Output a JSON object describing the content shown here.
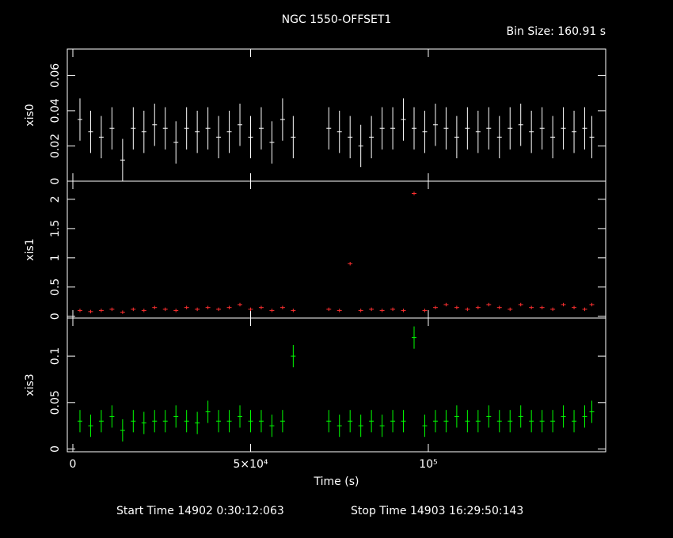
{
  "title": "NGC 1550-OFFSET1",
  "bin_size": "Bin Size: 160.91 s",
  "start_time": "Start Time 14902  0:30:12:063",
  "stop_time": "Stop Time 14903 16:29:50:143",
  "chart_data": [
    {
      "type": "errorbar",
      "ylabel": "xis0",
      "color": "#ffffff",
      "xlim": [
        -1560,
        149900
      ],
      "ylim": [
        0,
        0.075
      ],
      "yticks": [
        0,
        0.02,
        0.04,
        0.06
      ],
      "error": 0.012,
      "x": [
        2000,
        5000,
        8000,
        11000,
        14000,
        17000,
        20000,
        23000,
        26000,
        29000,
        32000,
        35000,
        38000,
        41000,
        44000,
        47000,
        50000,
        53000,
        56000,
        59000,
        62000,
        72000,
        75000,
        78000,
        81000,
        84000,
        87000,
        90000,
        93000,
        96000,
        99000,
        102000,
        105000,
        108000,
        111000,
        114000,
        117000,
        120000,
        123000,
        126000,
        129000,
        132000,
        135000,
        138000,
        141000,
        144000,
        146000
      ],
      "values": [
        0.035,
        0.028,
        0.025,
        0.03,
        0.012,
        0.03,
        0.028,
        0.032,
        0.03,
        0.022,
        0.03,
        0.028,
        0.03,
        0.025,
        0.028,
        0.032,
        0.025,
        0.03,
        0.022,
        0.035,
        0.025,
        0.03,
        0.028,
        0.025,
        0.02,
        0.025,
        0.03,
        0.03,
        0.035,
        0.03,
        0.028,
        0.032,
        0.03,
        0.025,
        0.03,
        0.028,
        0.03,
        0.025,
        0.03,
        0.032,
        0.028,
        0.03,
        0.025,
        0.03,
        0.028,
        0.03,
        0.025
      ]
    },
    {
      "type": "errorbar",
      "ylabel": "xis1",
      "color": "#ff3030",
      "xlim": [
        -1560,
        149900
      ],
      "ylim": [
        -0.03,
        2.31
      ],
      "yticks": [
        0,
        0.5,
        1,
        1.5,
        2
      ],
      "error": 0.03,
      "x": [
        2000,
        5000,
        8000,
        11000,
        14000,
        17000,
        20000,
        23000,
        26000,
        29000,
        32000,
        35000,
        38000,
        41000,
        44000,
        47000,
        50000,
        53000,
        56000,
        59000,
        62000,
        72000,
        75000,
        78000,
        81000,
        84000,
        87000,
        90000,
        93000,
        96000,
        99000,
        102000,
        105000,
        108000,
        111000,
        114000,
        117000,
        120000,
        123000,
        126000,
        129000,
        132000,
        135000,
        138000,
        141000,
        144000,
        146000
      ],
      "values": [
        0.1,
        0.08,
        0.1,
        0.12,
        0.07,
        0.12,
        0.1,
        0.15,
        0.12,
        0.1,
        0.15,
        0.12,
        0.15,
        0.12,
        0.15,
        0.2,
        0.12,
        0.15,
        0.1,
        0.15,
        0.1,
        0.12,
        0.1,
        0.9,
        0.1,
        0.12,
        0.1,
        0.12,
        0.1,
        2.1,
        0.1,
        0.15,
        0.2,
        0.15,
        0.12,
        0.15,
        0.2,
        0.15,
        0.12,
        0.2,
        0.15,
        0.15,
        0.12,
        0.2,
        0.15,
        0.12,
        0.2
      ]
    },
    {
      "type": "errorbar",
      "ylabel": "xis3",
      "color": "#00ff00",
      "xlabel": "Time (s)",
      "xlim": [
        -1560,
        149900
      ],
      "ylim": [
        -0.003,
        0.141
      ],
      "yticks": [
        0,
        0.05,
        0.1
      ],
      "error": 0.012,
      "xticks": [
        0,
        {
          "value": 50000,
          "label": "5×10⁴"
        },
        {
          "value": 100000,
          "label": "10⁵"
        }
      ],
      "x": [
        2000,
        5000,
        8000,
        11000,
        14000,
        17000,
        20000,
        23000,
        26000,
        29000,
        32000,
        35000,
        38000,
        41000,
        44000,
        47000,
        50000,
        53000,
        56000,
        59000,
        62000,
        72000,
        75000,
        78000,
        81000,
        84000,
        87000,
        90000,
        93000,
        96000,
        99000,
        102000,
        105000,
        108000,
        111000,
        114000,
        117000,
        120000,
        123000,
        126000,
        129000,
        132000,
        135000,
        138000,
        141000,
        144000,
        146000
      ],
      "values": [
        0.03,
        0.025,
        0.03,
        0.035,
        0.02,
        0.03,
        0.028,
        0.03,
        0.03,
        0.035,
        0.03,
        0.028,
        0.04,
        0.03,
        0.03,
        0.035,
        0.03,
        0.03,
        0.025,
        0.03,
        0.1,
        0.03,
        0.025,
        0.03,
        0.025,
        0.03,
        0.025,
        0.03,
        0.03,
        0.12,
        0.025,
        0.03,
        0.03,
        0.035,
        0.03,
        0.03,
        0.035,
        0.03,
        0.03,
        0.035,
        0.03,
        0.03,
        0.03,
        0.035,
        0.03,
        0.035,
        0.04
      ]
    }
  ]
}
